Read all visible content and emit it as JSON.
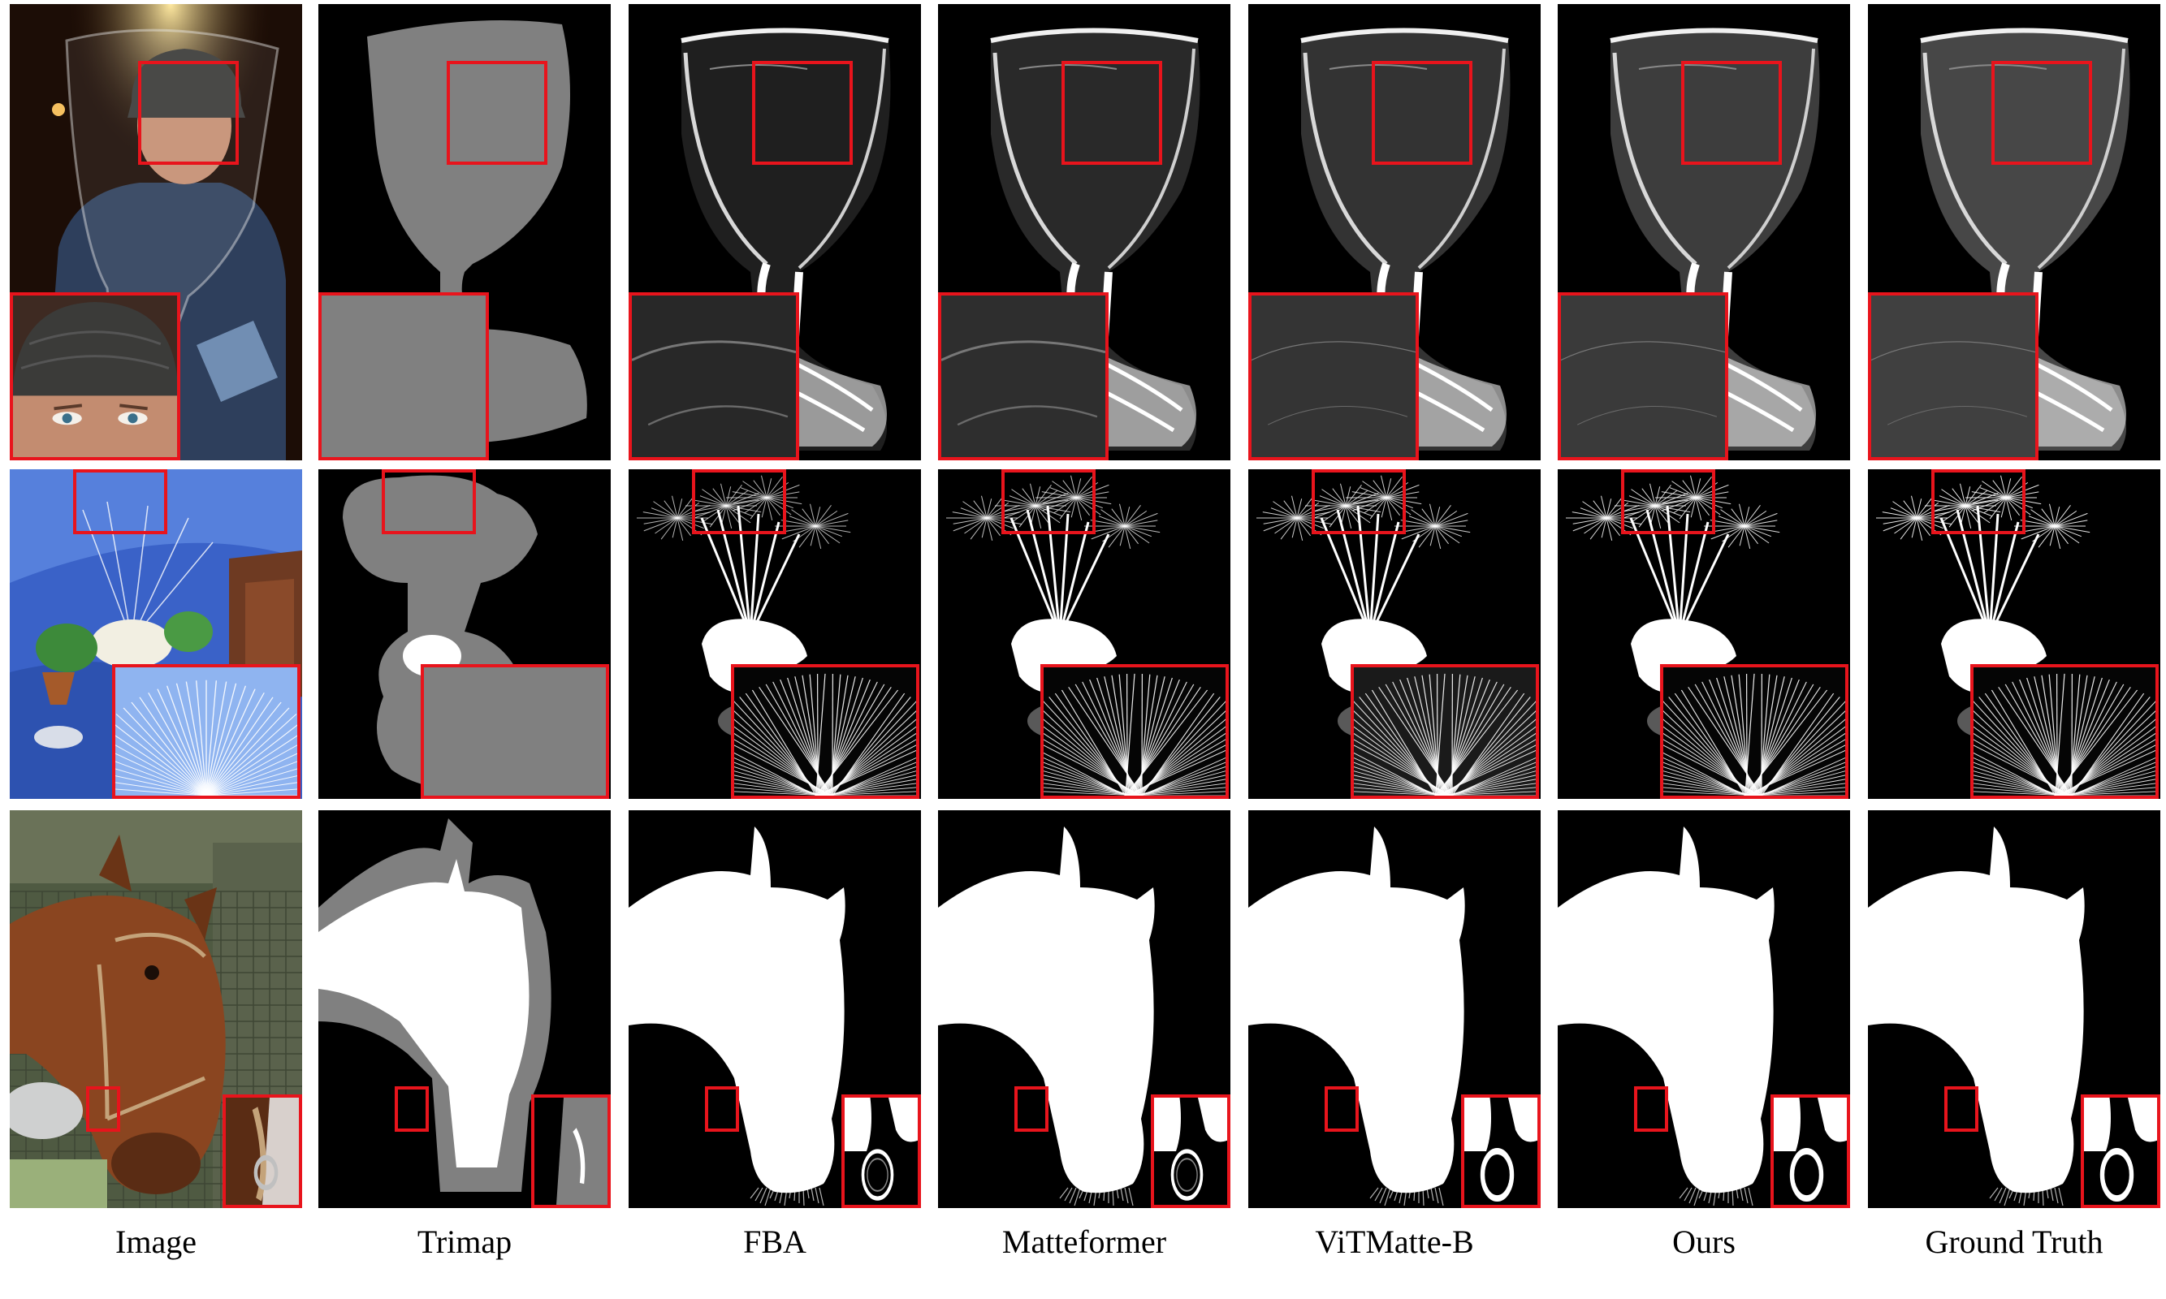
{
  "columns": [
    {
      "id": "image",
      "label": "Image"
    },
    {
      "id": "trimap",
      "label": "Trimap"
    },
    {
      "id": "fba",
      "label": "FBA"
    },
    {
      "id": "matteformer",
      "label": "Matteformer"
    },
    {
      "id": "vitmatte",
      "label": "ViTMatte-B"
    },
    {
      "id": "ours",
      "label": "Ours"
    },
    {
      "id": "gt",
      "label": "Ground Truth"
    }
  ],
  "rows": [
    {
      "id": "glass"
    },
    {
      "id": "dandelion"
    },
    {
      "id": "horse"
    }
  ],
  "colors": {
    "highlight_box": "#e8141c",
    "background": "#000000",
    "trimap_unknown": "#808080",
    "foreground": "#ffffff"
  }
}
